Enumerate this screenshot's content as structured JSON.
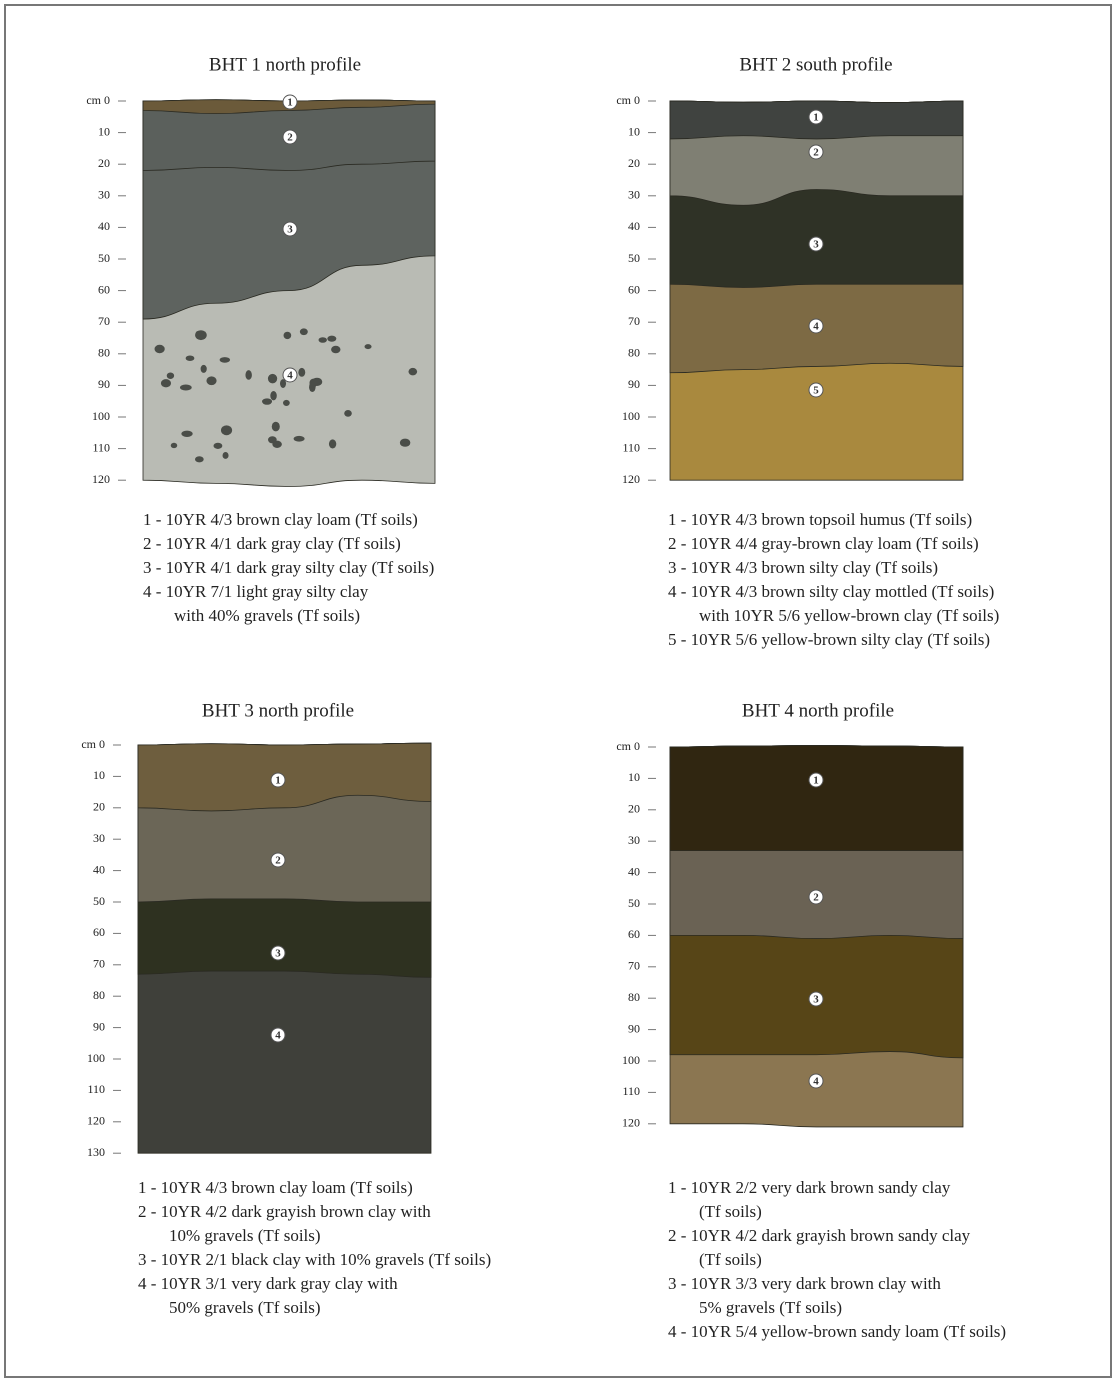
{
  "profiles": [
    {
      "title": "BHT 1 north profile",
      "axis_labels": [
        "cm 0",
        "10",
        "20",
        "30",
        "40",
        "50",
        "60",
        "70",
        "80",
        "90",
        "100",
        "110",
        "120"
      ],
      "layer_markers": [
        "1",
        "2",
        "3",
        "4"
      ],
      "legend": [
        [
          "1 - 10YR 4/3 brown clay loam (Tf soils)"
        ],
        [
          "2 - 10YR 4/1 dark gray clay (Tf soils)"
        ],
        [
          "3 - 10YR 4/1 dark gray silty clay (Tf soils)"
        ],
        [
          "4 - 10YR 7/1 light gray silty clay",
          "with 40% gravels (Tf soils)"
        ]
      ]
    },
    {
      "title": "BHT 2 south profile",
      "axis_labels": [
        "cm 0",
        "10",
        "20",
        "30",
        "40",
        "50",
        "60",
        "70",
        "80",
        "90",
        "100",
        "110",
        "120"
      ],
      "layer_markers": [
        "1",
        "2",
        "3",
        "4",
        "5"
      ],
      "legend": [
        [
          "1 - 10YR 4/3 brown topsoil humus (Tf soils)"
        ],
        [
          "2 - 10YR 4/4 gray-brown clay loam (Tf soils)"
        ],
        [
          "3 - 10YR 4/3 brown silty clay (Tf soils)"
        ],
        [
          "4 - 10YR 4/3 brown silty clay mottled (Tf soils)",
          "with 10YR 5/6 yellow-brown clay (Tf soils)"
        ],
        [
          "5 - 10YR 5/6 yellow-brown silty clay (Tf soils)"
        ]
      ]
    },
    {
      "title": "BHT 3 north profile",
      "axis_labels": [
        "cm 0",
        "10",
        "20",
        "30",
        "40",
        "50",
        "60",
        "70",
        "80",
        "90",
        "100",
        "110",
        "120",
        "130"
      ],
      "layer_markers": [
        "1",
        "2",
        "3",
        "4"
      ],
      "legend": [
        [
          "1 - 10YR 4/3 brown clay loam (Tf soils)"
        ],
        [
          "2 - 10YR 4/2 dark grayish brown clay with",
          "10% gravels (Tf soils)"
        ],
        [
          "3 - 10YR 2/1 black clay with 10% gravels (Tf soils)"
        ],
        [
          "4 - 10YR 3/1 very dark gray clay with",
          "50% gravels (Tf soils)"
        ]
      ]
    },
    {
      "title": "BHT 4 north profile",
      "axis_labels": [
        "cm 0",
        "10",
        "20",
        "30",
        "40",
        "50",
        "60",
        "70",
        "80",
        "90",
        "100",
        "110",
        "120"
      ],
      "layer_markers": [
        "1",
        "2",
        "3",
        "4"
      ],
      "legend": [
        [
          "1 - 10YR 2/2 very dark brown sandy clay",
          "(Tf soils)"
        ],
        [
          "2 - 10YR 4/2 dark grayish brown sandy clay",
          "(Tf soils)"
        ],
        [
          "3 - 10YR 3/3 very dark brown clay with",
          "5% gravels (Tf soils)"
        ],
        [
          "4 - 10YR 5/4 yellow-brown sandy loam (Tf soils)"
        ]
      ]
    }
  ]
}
